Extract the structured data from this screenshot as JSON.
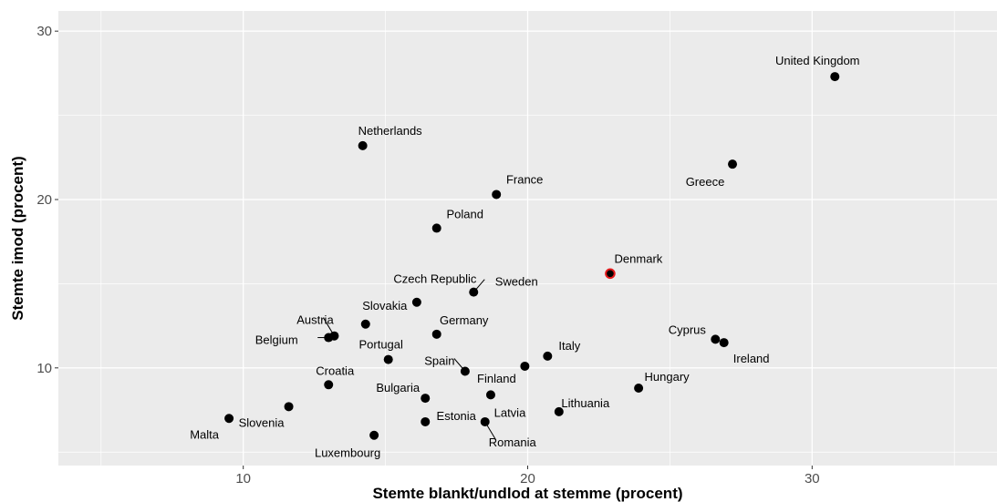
{
  "chart_data": {
    "type": "scatter",
    "xlabel": "Stemte blankt/undlod at stemme (procent)",
    "ylabel": "Stemte imod (procent)",
    "xlim": [
      3.5,
      36.5
    ],
    "ylim": [
      4.2,
      31.2
    ],
    "x_ticks": [
      10,
      20,
      30
    ],
    "y_ticks": [
      10,
      20,
      30
    ],
    "x_tick_labels": [
      "10",
      "20",
      "30"
    ],
    "y_tick_labels": [
      "10",
      "20",
      "30"
    ],
    "grid": true,
    "colors": {
      "panel": "#ebebeb",
      "grid": "#ffffff",
      "point": "#000000",
      "highlight_outline": "#e41a1c"
    },
    "points": [
      {
        "label": "United Kingdom",
        "x": 30.8,
        "y": 27.3
      },
      {
        "label": "Netherlands",
        "x": 14.2,
        "y": 23.2
      },
      {
        "label": "Greece",
        "x": 27.2,
        "y": 22.1
      },
      {
        "label": "France",
        "x": 18.9,
        "y": 20.3
      },
      {
        "label": "Poland",
        "x": 16.8,
        "y": 18.3
      },
      {
        "label": "Denmark",
        "x": 22.9,
        "y": 15.6,
        "highlight": true
      },
      {
        "label": "Sweden",
        "x": 18.1,
        "y": 14.5
      },
      {
        "label": "Czech Republic",
        "x": 16.1,
        "y": 13.9
      },
      {
        "label": "Slovakia",
        "x": 14.3,
        "y": 12.6
      },
      {
        "label": "Austria",
        "x": 13.2,
        "y": 11.9
      },
      {
        "label": "Belgium",
        "x": 13.0,
        "y": 11.8
      },
      {
        "label": "Germany",
        "x": 16.8,
        "y": 12.0
      },
      {
        "label": "Cyprus",
        "x": 26.6,
        "y": 11.7
      },
      {
        "label": "Ireland",
        "x": 26.9,
        "y": 11.5
      },
      {
        "label": "Portugal",
        "x": 15.1,
        "y": 10.5
      },
      {
        "label": "Italy",
        "x": 20.7,
        "y": 10.7
      },
      {
        "label": "Spain",
        "x": 17.8,
        "y": 9.8
      },
      {
        "label": "Finland",
        "x": 19.9,
        "y": 10.1
      },
      {
        "label": "Croatia",
        "x": 13.0,
        "y": 9.0
      },
      {
        "label": "Hungary",
        "x": 23.9,
        "y": 8.8
      },
      {
        "label": "Bulgaria",
        "x": 16.4,
        "y": 8.2
      },
      {
        "label": "Latvia",
        "x": 18.7,
        "y": 8.4
      },
      {
        "label": "Slovenia",
        "x": 11.6,
        "y": 7.7
      },
      {
        "label": "Lithuania",
        "x": 21.1,
        "y": 7.4
      },
      {
        "label": "Malta",
        "x": 9.5,
        "y": 7.0
      },
      {
        "label": "Estonia",
        "x": 16.4,
        "y": 6.8
      },
      {
        "label": "Romania",
        "x": 18.5,
        "y": 6.8
      },
      {
        "label": "Luxembourg",
        "x": 14.6,
        "y": 6.0
      }
    ]
  }
}
